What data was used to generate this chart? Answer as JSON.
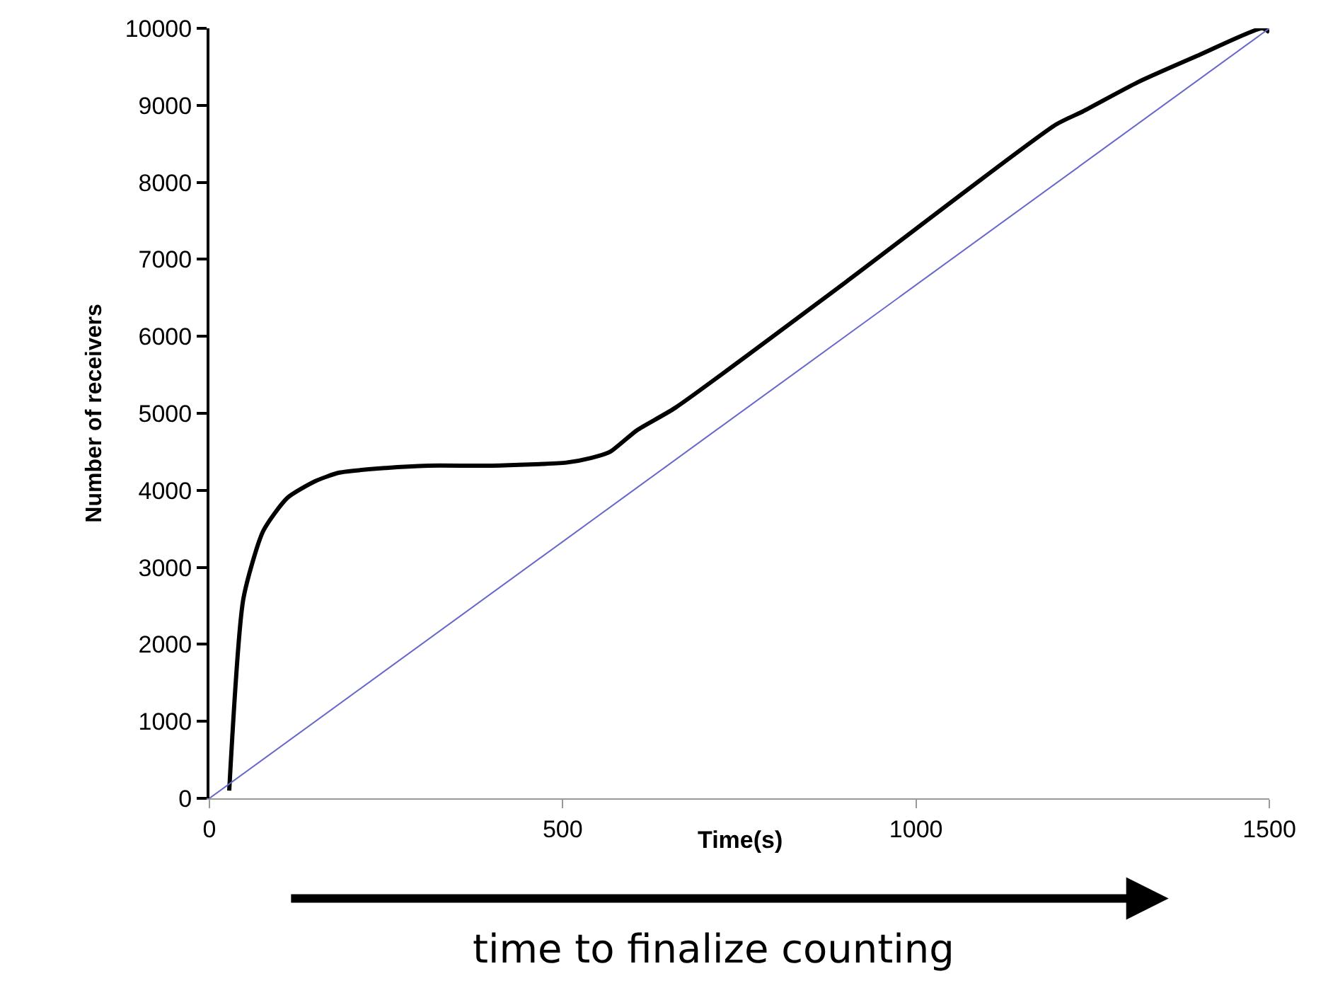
{
  "chart_data": {
    "type": "line",
    "xlabel": "Time(s)",
    "ylabel": "Number of receivers",
    "xlim": [
      0,
      1500
    ],
    "xticks": [
      0,
      500,
      1000,
      1500
    ],
    "ylim": [
      0,
      10000
    ],
    "yticks": [
      0,
      1000,
      2000,
      3000,
      4000,
      5000,
      6000,
      7000,
      8000,
      9000,
      10000
    ],
    "marker": "none",
    "line_style": "solid",
    "series": [
      {
        "color": "#000000",
        "x": [
          28,
          48,
          76,
          110,
          150,
          184,
          250,
          310,
          400,
          505,
          540,
          567,
          605,
          659,
          900,
          1198,
          1236,
          1314,
          1400,
          1490,
          1500
        ],
        "values": [
          100,
          2590,
          3470,
          3900,
          4120,
          4230,
          4290,
          4320,
          4320,
          4360,
          4420,
          4500,
          4780,
          5070,
          6700,
          8750,
          8920,
          9300,
          9650,
          10000,
          9950
        ]
      },
      {
        "color": "#6666cc",
        "x": [
          0,
          1500
        ],
        "values": [
          0,
          10000
        ]
      }
    ],
    "annotations": [
      "time to finalize counting"
    ]
  }
}
